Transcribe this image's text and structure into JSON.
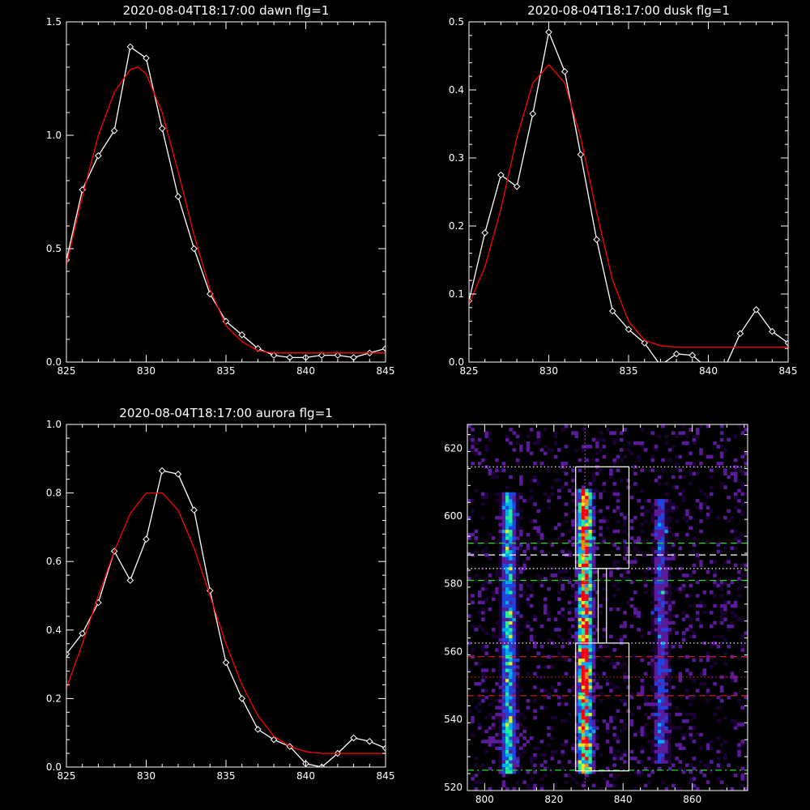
{
  "chart_data": [
    {
      "type": "line",
      "title": "2020-08-04T18:17:00 dawn flg=1",
      "xlim": [
        825,
        845
      ],
      "ylim": [
        0,
        1.5
      ],
      "xticks": [
        "825",
        "830",
        "835",
        "840",
        "845"
      ],
      "yticks": [
        "0.0",
        "0.5",
        "1.0",
        "1.5"
      ],
      "series": [
        {
          "role": "observed",
          "color": "#ffffff",
          "marker": "diamond",
          "x": [
            825,
            826,
            827,
            828,
            829,
            830,
            831,
            832,
            833,
            834,
            835,
            836,
            837,
            838,
            839,
            840,
            841,
            842,
            843,
            844,
            845
          ],
          "y": [
            0.45,
            0.76,
            0.91,
            1.02,
            1.39,
            1.34,
            1.03,
            0.73,
            0.5,
            0.3,
            0.18,
            0.12,
            0.06,
            0.03,
            0.02,
            0.02,
            0.03,
            0.03,
            0.02,
            0.04,
            0.06
          ]
        },
        {
          "role": "fit",
          "color": "#ff0000",
          "x": [
            825,
            826,
            827,
            828,
            829,
            829.5,
            830,
            831,
            832,
            833,
            834,
            835,
            836,
            837,
            838,
            839,
            840,
            842,
            845
          ],
          "y": [
            0.43,
            0.73,
            1.0,
            1.19,
            1.29,
            1.3,
            1.27,
            1.1,
            0.84,
            0.56,
            0.32,
            0.16,
            0.09,
            0.05,
            0.04,
            0.04,
            0.04,
            0.04,
            0.04
          ]
        }
      ]
    },
    {
      "type": "line",
      "title": "2020-08-04T18:17:00 dusk flg=1",
      "xlim": [
        825,
        845
      ],
      "ylim": [
        0,
        0.5
      ],
      "xticks": [
        "825",
        "830",
        "835",
        "840",
        "845"
      ],
      "yticks": [
        "0.0",
        "0.1",
        "0.2",
        "0.3",
        "0.4",
        "0.5"
      ],
      "series": [
        {
          "role": "observed",
          "color": "#ffffff",
          "marker": "diamond",
          "x": [
            825,
            826,
            827,
            828,
            829,
            830,
            831,
            832,
            833,
            834,
            835,
            836,
            837,
            838,
            839,
            840,
            841,
            842,
            843,
            844,
            845
          ],
          "y": [
            0.09,
            0.19,
            0.275,
            0.258,
            0.365,
            0.485,
            0.427,
            0.305,
            0.18,
            0.075,
            0.048,
            0.028,
            -0.005,
            0.012,
            0.01,
            -0.01,
            -0.01,
            0.042,
            0.077,
            0.045,
            0.028
          ]
        },
        {
          "role": "fit",
          "color": "#ff0000",
          "x": [
            825,
            826,
            827,
            828,
            829,
            830,
            831,
            832,
            833,
            834,
            835,
            836,
            837,
            838,
            840,
            845
          ],
          "y": [
            0.085,
            0.14,
            0.225,
            0.33,
            0.41,
            0.437,
            0.41,
            0.33,
            0.22,
            0.12,
            0.06,
            0.032,
            0.024,
            0.022,
            0.022,
            0.022
          ]
        }
      ]
    },
    {
      "type": "line",
      "title": "2020-08-04T18:17:00 aurora flg=1",
      "xlim": [
        825,
        845
      ],
      "ylim": [
        0,
        1.0
      ],
      "xticks": [
        "825",
        "830",
        "835",
        "840",
        "845"
      ],
      "yticks": [
        "0.0",
        "0.2",
        "0.4",
        "0.6",
        "0.8",
        "1.0"
      ],
      "series": [
        {
          "role": "observed",
          "color": "#ffffff",
          "marker": "diamond",
          "x": [
            825,
            826,
            827,
            828,
            829,
            830,
            831,
            832,
            833,
            834,
            835,
            836,
            837,
            838,
            839,
            840,
            841,
            842,
            843,
            844,
            845
          ],
          "y": [
            0.33,
            0.39,
            0.48,
            0.63,
            0.545,
            0.665,
            0.865,
            0.855,
            0.75,
            0.515,
            0.305,
            0.2,
            0.11,
            0.08,
            0.06,
            0.01,
            0.0,
            0.04,
            0.085,
            0.075,
            0.055
          ]
        },
        {
          "role": "fit",
          "color": "#ff0000",
          "x": [
            825,
            826,
            827,
            828,
            829,
            830,
            831,
            832,
            833,
            834,
            835,
            836,
            837,
            838,
            839,
            840,
            841,
            842,
            845
          ],
          "y": [
            0.23,
            0.36,
            0.5,
            0.63,
            0.74,
            0.8,
            0.8,
            0.75,
            0.64,
            0.5,
            0.36,
            0.24,
            0.15,
            0.09,
            0.06,
            0.045,
            0.04,
            0.04,
            0.04
          ]
        }
      ]
    },
    {
      "type": "heatmap",
      "title": "",
      "xlim": [
        795,
        876
      ],
      "ylim": [
        519,
        627
      ],
      "xticks": [
        "800",
        "820",
        "840",
        "860"
      ],
      "yticks": [
        "520",
        "540",
        "560",
        "580",
        "600",
        "620"
      ],
      "colormap": [
        "#1a0033",
        "#5a1a9a",
        "#2244dd",
        "#00aaee",
        "#22ee99",
        "#ddee22",
        "#ff8800",
        "#ff0000"
      ],
      "columns": [
        {
          "x": 807,
          "ymin": 524,
          "ymax": 606,
          "peak": 0.55
        },
        {
          "x": 829,
          "ymin": 524,
          "ymax": 607,
          "peak": 1.0
        },
        {
          "x": 851,
          "ymin": 527,
          "ymax": 604,
          "peak": 0.3
        }
      ],
      "hlines": [
        {
          "y": 614.5,
          "color": "#ffffff",
          "style": "dotted"
        },
        {
          "y": 592,
          "color": "#22dd22",
          "style": "dashed"
        },
        {
          "y": 588.5,
          "color": "#ffffff",
          "style": "dashed"
        },
        {
          "y": 584.5,
          "color": "#ffffff",
          "style": "dotted"
        },
        {
          "y": 581,
          "color": "#22dd22",
          "style": "dashed"
        },
        {
          "y": 562.5,
          "color": "#ffffff",
          "style": "dotted"
        },
        {
          "y": 558.5,
          "color": "#dd2222",
          "style": "dashed"
        },
        {
          "y": 552.5,
          "color": "#dd2222",
          "style": "dotted"
        },
        {
          "y": 547,
          "color": "#dd2222",
          "style": "dashed"
        },
        {
          "y": 525,
          "color": "#22dd22",
          "style": "dashdot"
        }
      ],
      "vlines": [
        {
          "x": 829,
          "color": "#cc44cc",
          "style": "dotted"
        }
      ],
      "boxes": [
        {
          "x0": 826.3,
          "x1": 841.7,
          "y0": 584.5,
          "y1": 614.5
        },
        {
          "x0": 832.8,
          "x1": 835.2,
          "y0": 562.5,
          "y1": 584.5
        },
        {
          "x0": 826.3,
          "x1": 841.7,
          "y0": 524.8,
          "y1": 562.5
        }
      ]
    }
  ]
}
